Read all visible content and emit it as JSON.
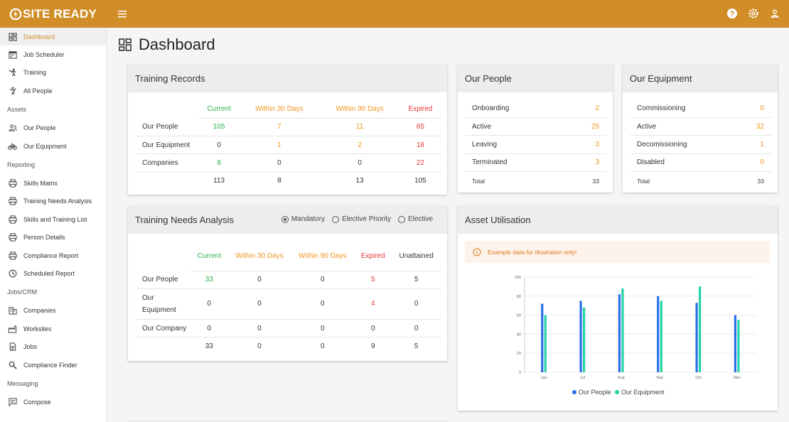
{
  "brand": {
    "name": "SITE READY"
  },
  "sidebar": {
    "top_items": [
      {
        "label": "Dashboard",
        "icon": "dashboard-icon",
        "active": true
      },
      {
        "label": "Job Scheduler",
        "icon": "calendar-icon"
      },
      {
        "label": "Training",
        "icon": "training-icon"
      },
      {
        "label": "All People",
        "icon": "person-icon"
      }
    ],
    "sections": [
      {
        "title": "Assets",
        "items": [
          {
            "label": "Our People",
            "icon": "people-icon"
          },
          {
            "label": "Our Equipment",
            "icon": "bike-icon"
          }
        ]
      },
      {
        "title": "Reporting",
        "items": [
          {
            "label": "Skills Matrix",
            "icon": "print-icon"
          },
          {
            "label": "Training Needs Analysis",
            "icon": "print-icon"
          },
          {
            "label": "Skills and Training List",
            "icon": "print-icon"
          },
          {
            "label": "Person Details",
            "icon": "print-icon"
          },
          {
            "label": "Compliance Report",
            "icon": "print-icon"
          },
          {
            "label": "Scheduled Report",
            "icon": "clock-icon"
          }
        ]
      },
      {
        "title": "Jobs/CRM",
        "items": [
          {
            "label": "Companies",
            "icon": "building-icon"
          },
          {
            "label": "Worksites",
            "icon": "factory-icon"
          },
          {
            "label": "Jobs",
            "icon": "document-icon"
          },
          {
            "label": "Compliance Finder",
            "icon": "search-icon"
          }
        ]
      },
      {
        "title": "Messaging",
        "items": [
          {
            "label": "Compose",
            "icon": "message-icon"
          }
        ]
      }
    ]
  },
  "page": {
    "title": "Dashboard"
  },
  "training_records": {
    "title": "Training Records",
    "headers": [
      "Current",
      "Within 30 Days",
      "Within 90 Days",
      "Expired"
    ],
    "rows": [
      {
        "label": "Our People",
        "values": [
          "105",
          "7",
          "11",
          "65"
        ]
      },
      {
        "label": "Our Equipment",
        "values": [
          "0",
          "1",
          "2",
          "18"
        ]
      },
      {
        "label": "Companies",
        "values": [
          "8",
          "0",
          "0",
          "22"
        ]
      }
    ],
    "totals": [
      "113",
      "8",
      "13",
      "105"
    ]
  },
  "our_people": {
    "title": "Our People",
    "rows": [
      {
        "label": "Onboarding",
        "value": "2"
      },
      {
        "label": "Active",
        "value": "25"
      },
      {
        "label": "Leaving",
        "value": "3"
      },
      {
        "label": "Terminated",
        "value": "3"
      }
    ],
    "total_label": "Total",
    "total": "33"
  },
  "our_equipment": {
    "title": "Our Equipment",
    "rows": [
      {
        "label": "Commissioning",
        "value": "0"
      },
      {
        "label": "Active",
        "value": "32"
      },
      {
        "label": "Decomissioning",
        "value": "1"
      },
      {
        "label": "Disabled",
        "value": "0"
      }
    ],
    "total_label": "Total",
    "total": "33"
  },
  "tna": {
    "title": "Training Needs Analysis",
    "radio": [
      {
        "label": "Mandatory",
        "checked": true
      },
      {
        "label": "Elective Priority",
        "checked": false
      },
      {
        "label": "Elective",
        "checked": false
      }
    ],
    "headers": [
      "Current",
      "Within 30 Days",
      "Within 90 Days",
      "Expired",
      "Unattained"
    ],
    "rows": [
      {
        "label": "Our People",
        "values": [
          "33",
          "0",
          "0",
          "5",
          "5"
        ]
      },
      {
        "label": "Our Equipment",
        "values": [
          "0",
          "0",
          "0",
          "4",
          "0"
        ]
      },
      {
        "label": "Our Company",
        "values": [
          "0",
          "0",
          "0",
          "0",
          "0"
        ]
      }
    ],
    "totals": [
      "33",
      "0",
      "0",
      "9",
      "5"
    ]
  },
  "asset_utilisation": {
    "title": "Asset Utilisation",
    "notice": "Example data for illustration only!"
  },
  "colors": {
    "brand": "#d18e28",
    "current": "#2fb14a",
    "warn": "#f0951c",
    "expired": "#e53935",
    "series_people": "#2a6ee8",
    "series_equipment": "#22d3a8"
  },
  "chart_data": {
    "type": "bar",
    "categories": [
      "Jun",
      "Jul",
      "Aug",
      "Sep",
      "Oct",
      "Nov"
    ],
    "series": [
      {
        "name": "Our People",
        "values": [
          72,
          75,
          82,
          80,
          73,
          60
        ]
      },
      {
        "name": "Our Equipment",
        "values": [
          60,
          68,
          88,
          75,
          90,
          55
        ]
      }
    ],
    "ylim": [
      0,
      100
    ],
    "yticks": [
      0,
      20,
      40,
      60,
      80,
      100
    ],
    "grid": true,
    "legend": "bottom"
  }
}
